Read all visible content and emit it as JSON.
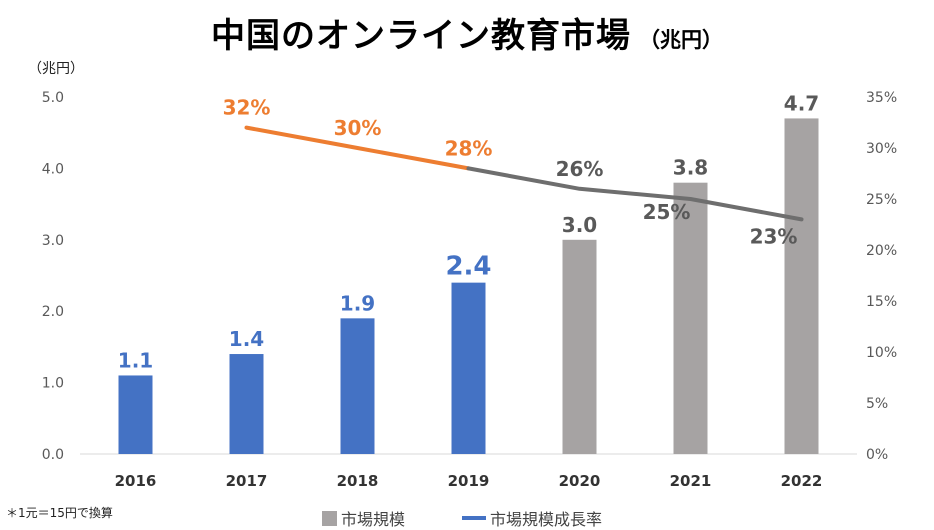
{
  "title": "中国のオンライン教育市場",
  "title_unit": "（兆円）",
  "y_unit": "（兆円）",
  "footnote": "＊1元＝15円で換算",
  "colors": {
    "actual": "#4472c4",
    "forecast": "#a6a3a3",
    "rate_actual": "#ed7d31",
    "rate_forecast": "#6e6e6e"
  },
  "legend": {
    "bar_label": "市場規模",
    "line_label": "市場規模成長率"
  },
  "chart_data": {
    "type": "bar",
    "categories": [
      "2016",
      "2017",
      "2018",
      "2019",
      "2020",
      "2021",
      "2022"
    ],
    "series": [
      {
        "name": "市場規模",
        "axis": "left",
        "values": [
          1.1,
          1.4,
          1.9,
          2.4,
          3.0,
          3.8,
          4.7
        ],
        "labels": [
          "1.1",
          "1.4",
          "1.9",
          "2.4",
          "3.0",
          "3.8",
          "4.7"
        ],
        "forecast": [
          false,
          false,
          false,
          false,
          true,
          true,
          true
        ]
      },
      {
        "name": "市場規模成長率",
        "type": "line",
        "axis": "right",
        "x": [
          "2017",
          "2018",
          "2019",
          "2020",
          "2021",
          "2022"
        ],
        "values": [
          32,
          30,
          28,
          26,
          25,
          23
        ],
        "labels": [
          "32%",
          "30%",
          "28%",
          "26%",
          "25%",
          "23%"
        ],
        "forecast": [
          false,
          false,
          false,
          true,
          true,
          true
        ]
      }
    ],
    "ylim_left": [
      0,
      5.0
    ],
    "yticks_left": [
      "0.0",
      "1.0",
      "2.0",
      "3.0",
      "4.0",
      "5.0"
    ],
    "ylim_right": [
      0,
      35
    ],
    "yticks_right": [
      "0%",
      "5%",
      "10%",
      "15%",
      "20%",
      "25%",
      "30%",
      "35%"
    ],
    "grid": false,
    "legend_position": "bottom"
  }
}
